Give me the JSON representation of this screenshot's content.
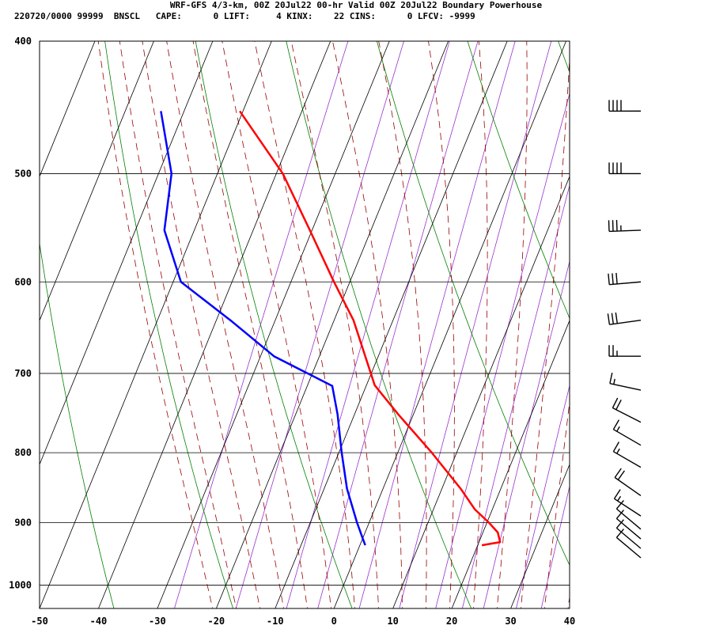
{
  "header": {
    "title": "WRF-GFS 4/3-km, 00Z 20Jul22 00-hr Valid 00Z 20Jul22 Boundary Powerhouse",
    "stats": "220720/0000 99999  BNSCL   CAPE:      0 LIFT:     4 KINX:    22 CINS:      0 LFCV: -9999"
  },
  "chart_data": {
    "type": "skew-t",
    "title": "WRF-GFS 4/3-km, 00Z 20Jul22 00-hr Valid 00Z 20Jul22 Boundary Powerhouse",
    "xlim": [
      -50,
      40
    ],
    "ylim_pressure": [
      1040,
      400
    ],
    "x_ticks": [
      -50,
      -40,
      -30,
      -20,
      -10,
      0,
      10,
      20,
      30,
      40
    ],
    "x_tick_labels": [
      "-50",
      "-40",
      "-30",
      "-20",
      "-10",
      "0",
      "10",
      "20",
      "30",
      "40"
    ],
    "y_ticks": [
      400,
      500,
      600,
      700,
      800,
      900,
      1000
    ],
    "y_tick_labels": [
      "400",
      "500",
      "600",
      "700",
      "800",
      "900",
      "1000"
    ],
    "series": [
      {
        "color": "#ff0000",
        "points": [
          {
            "p": 935,
            "x": 25.1
          },
          {
            "p": 930,
            "x": 28.2
          },
          {
            "p": 915,
            "x": 27.8
          },
          {
            "p": 900,
            "x": 26.3
          },
          {
            "p": 880,
            "x": 23.9
          },
          {
            "p": 850,
            "x": 21.5
          },
          {
            "p": 800,
            "x": 16.6
          },
          {
            "p": 750,
            "x": 10.9
          },
          {
            "p": 714,
            "x": 6.9
          },
          {
            "p": 680,
            "x": 5.3
          },
          {
            "p": 640,
            "x": 3.3
          },
          {
            "p": 600,
            "x": 0.0
          },
          {
            "p": 550,
            "x": -4.1
          },
          {
            "p": 500,
            "x": -8.7
          },
          {
            "p": 450,
            "x": -16.0
          }
        ]
      },
      {
        "color": "#0000ff",
        "points": [
          {
            "p": 935,
            "x": 5.3
          },
          {
            "p": 925,
            "x": 4.9
          },
          {
            "p": 900,
            "x": 3.9
          },
          {
            "p": 870,
            "x": 2.9
          },
          {
            "p": 850,
            "x": 2.2
          },
          {
            "p": 800,
            "x": 1.3
          },
          {
            "p": 750,
            "x": 0.6
          },
          {
            "p": 715,
            "x": -0.3
          },
          {
            "p": 680,
            "x": -10.2
          },
          {
            "p": 640,
            "x": -17.6
          },
          {
            "p": 600,
            "x": -26.0
          },
          {
            "p": 550,
            "x": -28.8
          },
          {
            "p": 500,
            "x": -27.6
          },
          {
            "p": 450,
            "x": -29.4
          }
        ]
      }
    ],
    "wind_barbs": [
      {
        "p": 450,
        "direction_deg": 270,
        "speed_kt": 40
      },
      {
        "p": 500,
        "direction_deg": 270,
        "speed_kt": 40
      },
      {
        "p": 550,
        "direction_deg": 268,
        "speed_kt": 35
      },
      {
        "p": 600,
        "direction_deg": 265,
        "speed_kt": 30
      },
      {
        "p": 640,
        "direction_deg": 262,
        "speed_kt": 30
      },
      {
        "p": 680,
        "direction_deg": 270,
        "speed_kt": 25
      },
      {
        "p": 720,
        "direction_deg": 282,
        "speed_kt": 15
      },
      {
        "p": 760,
        "direction_deg": 297,
        "speed_kt": 20
      },
      {
        "p": 790,
        "direction_deg": 300,
        "speed_kt": 15
      },
      {
        "p": 820,
        "direction_deg": 300,
        "speed_kt": 15
      },
      {
        "p": 860,
        "direction_deg": 305,
        "speed_kt": 20
      },
      {
        "p": 890,
        "direction_deg": 303,
        "speed_kt": 15
      },
      {
        "p": 910,
        "direction_deg": 310,
        "speed_kt": 10
      },
      {
        "p": 925,
        "direction_deg": 310,
        "speed_kt": 10
      },
      {
        "p": 940,
        "direction_deg": 310,
        "speed_kt": 10
      },
      {
        "p": 955,
        "direction_deg": 310,
        "speed_kt": 10
      }
    ],
    "reference_lines": {
      "dry_adiabat_color": "#008000",
      "moist_adiabat_color": "#990000",
      "mixing_ratio_color": "#9933cc",
      "isotherm_color": "#000000",
      "isobar_color": "#000000"
    }
  }
}
